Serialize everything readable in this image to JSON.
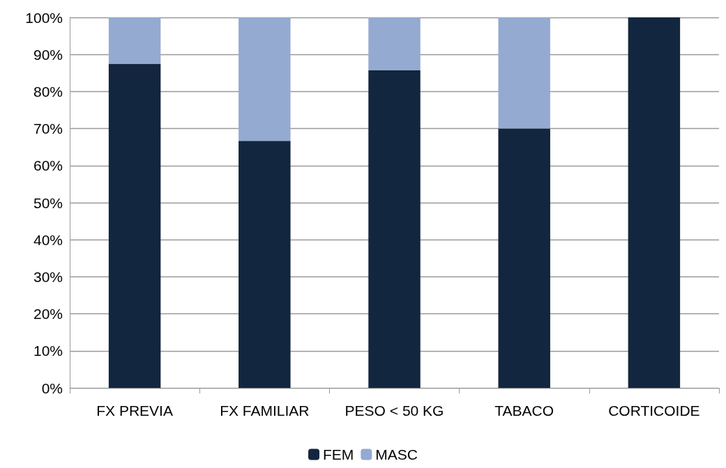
{
  "chart_data": {
    "type": "bar",
    "stacked": true,
    "categories": [
      "FX PREVIA",
      "FX FAMILIAR",
      "PESO < 50 KG",
      "TABACO",
      "CORTICOIDE"
    ],
    "series": [
      {
        "name": "FEM",
        "color": "#13263f",
        "values": [
          87.5,
          66.7,
          85.7,
          70,
          100
        ]
      },
      {
        "name": "MASC",
        "color": "#95aad1",
        "values": [
          12.5,
          33.3,
          14.3,
          30,
          0
        ]
      }
    ],
    "ylim": [
      0,
      100
    ],
    "yticks": [
      {
        "value": 0,
        "label": "0%"
      },
      {
        "value": 10,
        "label": "10%"
      },
      {
        "value": 20,
        "label": "20%"
      },
      {
        "value": 30,
        "label": "30%"
      },
      {
        "value": 40,
        "label": "40%"
      },
      {
        "value": 50,
        "label": "50%"
      },
      {
        "value": 60,
        "label": "60%"
      },
      {
        "value": 70,
        "label": "70%"
      },
      {
        "value": 80,
        "label": "80%"
      },
      {
        "value": 90,
        "label": "90%"
      },
      {
        "value": 100,
        "label": "100%"
      }
    ],
    "grid": "y",
    "legend": "bottom"
  }
}
